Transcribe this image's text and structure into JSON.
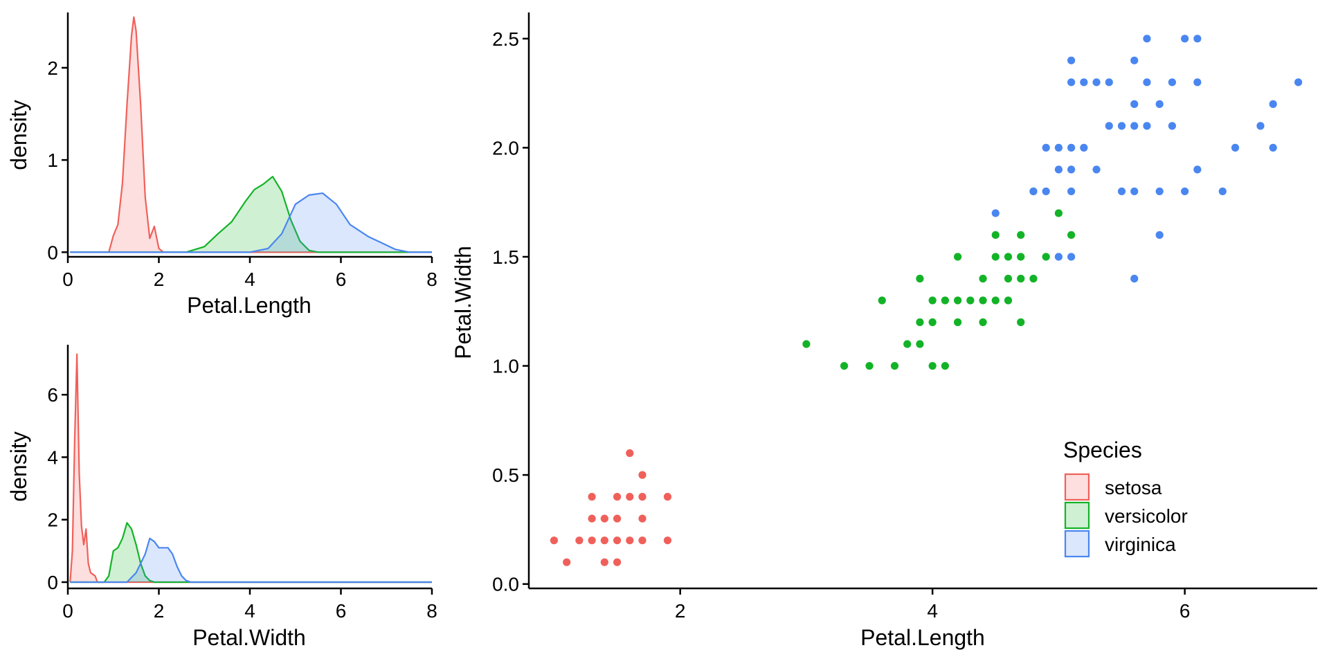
{
  "colors": {
    "setosa": "#F0605A",
    "versicolor": "#13B327",
    "virginica": "#4A86F0",
    "axis": "#000000"
  },
  "legend": {
    "title": "Species",
    "placement": "bottom-right",
    "items": [
      "setosa",
      "versicolor",
      "virginica"
    ]
  },
  "chart_data": [
    {
      "type": "area",
      "xlabel": "Petal.Length",
      "ylabel": "density",
      "xlim": [
        0,
        8
      ],
      "ylim": [
        -0.05,
        2.6
      ],
      "xticks": [
        "0",
        "2",
        "4",
        "6",
        "8"
      ],
      "yticks": [
        "0",
        "1",
        "2"
      ],
      "grid": false,
      "series": [
        {
          "name": "setosa",
          "points": [
            [
              0.05,
              0
            ],
            [
              0.9,
              0
            ],
            [
              1.0,
              0.18
            ],
            [
              1.1,
              0.3
            ],
            [
              1.2,
              0.75
            ],
            [
              1.3,
              1.6
            ],
            [
              1.4,
              2.35
            ],
            [
              1.45,
              2.55
            ],
            [
              1.5,
              2.4
            ],
            [
              1.6,
              1.6
            ],
            [
              1.7,
              0.6
            ],
            [
              1.8,
              0.15
            ],
            [
              1.9,
              0.28
            ],
            [
              2.0,
              0.04
            ],
            [
              2.1,
              0
            ],
            [
              8.0,
              0
            ]
          ]
        },
        {
          "name": "versicolor",
          "points": [
            [
              0.05,
              0
            ],
            [
              2.6,
              0
            ],
            [
              3.0,
              0.06
            ],
            [
              3.3,
              0.2
            ],
            [
              3.6,
              0.33
            ],
            [
              3.9,
              0.55
            ],
            [
              4.1,
              0.68
            ],
            [
              4.3,
              0.74
            ],
            [
              4.5,
              0.82
            ],
            [
              4.7,
              0.66
            ],
            [
              4.9,
              0.35
            ],
            [
              5.1,
              0.12
            ],
            [
              5.3,
              0.02
            ],
            [
              5.5,
              0
            ],
            [
              8.0,
              0
            ]
          ]
        },
        {
          "name": "virginica",
          "points": [
            [
              0.05,
              0
            ],
            [
              4.0,
              0
            ],
            [
              4.4,
              0.04
            ],
            [
              4.7,
              0.2
            ],
            [
              5.0,
              0.52
            ],
            [
              5.3,
              0.62
            ],
            [
              5.6,
              0.64
            ],
            [
              5.9,
              0.52
            ],
            [
              6.2,
              0.3
            ],
            [
              6.6,
              0.17
            ],
            [
              6.9,
              0.1
            ],
            [
              7.2,
              0.03
            ],
            [
              7.5,
              0
            ],
            [
              8.0,
              0
            ]
          ]
        }
      ]
    },
    {
      "type": "area",
      "xlabel": "Petal.Width",
      "ylabel": "density",
      "xlim": [
        0,
        8
      ],
      "ylim": [
        -0.2,
        7.6
      ],
      "xticks": [
        "0",
        "2",
        "4",
        "6",
        "8"
      ],
      "yticks": [
        "0",
        "2",
        "4",
        "6"
      ],
      "grid": false,
      "series": [
        {
          "name": "setosa",
          "points": [
            [
              0.05,
              0
            ],
            [
              0.1,
              1.0
            ],
            [
              0.15,
              4.5
            ],
            [
              0.2,
              7.3
            ],
            [
              0.25,
              3.5
            ],
            [
              0.3,
              1.8
            ],
            [
              0.35,
              1.2
            ],
            [
              0.4,
              1.7
            ],
            [
              0.45,
              0.6
            ],
            [
              0.5,
              0.3
            ],
            [
              0.6,
              0.2
            ],
            [
              0.65,
              0
            ],
            [
              8.0,
              0
            ]
          ]
        },
        {
          "name": "versicolor",
          "points": [
            [
              0.05,
              0
            ],
            [
              0.8,
              0
            ],
            [
              0.9,
              0.2
            ],
            [
              1.0,
              1.0
            ],
            [
              1.1,
              1.1
            ],
            [
              1.2,
              1.4
            ],
            [
              1.3,
              1.9
            ],
            [
              1.4,
              1.7
            ],
            [
              1.5,
              1.2
            ],
            [
              1.6,
              0.6
            ],
            [
              1.7,
              0.2
            ],
            [
              1.8,
              0.05
            ],
            [
              1.9,
              0
            ],
            [
              8.0,
              0
            ]
          ]
        },
        {
          "name": "virginica",
          "points": [
            [
              0.05,
              0
            ],
            [
              1.3,
              0
            ],
            [
              1.5,
              0.3
            ],
            [
              1.7,
              0.9
            ],
            [
              1.8,
              1.4
            ],
            [
              1.9,
              1.3
            ],
            [
              2.0,
              1.1
            ],
            [
              2.2,
              1.1
            ],
            [
              2.3,
              0.9
            ],
            [
              2.4,
              0.5
            ],
            [
              2.5,
              0.2
            ],
            [
              2.6,
              0.05
            ],
            [
              2.7,
              0
            ],
            [
              8.0,
              0
            ]
          ]
        }
      ]
    },
    {
      "type": "scatter",
      "xlabel": "Petal.Length",
      "ylabel": "Petal.Width",
      "xlim": [
        0.8,
        7.05
      ],
      "ylim": [
        -0.02,
        2.62
      ],
      "xticks": [
        "2",
        "4",
        "6"
      ],
      "yticks": [
        "0.0",
        "0.5",
        "1.0",
        "1.5",
        "2.0",
        "2.5"
      ],
      "grid": false,
      "series": [
        {
          "name": "setosa",
          "points": [
            [
              1.0,
              0.2
            ],
            [
              1.1,
              0.1
            ],
            [
              1.2,
              0.2
            ],
            [
              1.3,
              0.2
            ],
            [
              1.3,
              0.3
            ],
            [
              1.3,
              0.4
            ],
            [
              1.4,
              0.1
            ],
            [
              1.4,
              0.2
            ],
            [
              1.4,
              0.3
            ],
            [
              1.5,
              0.1
            ],
            [
              1.5,
              0.2
            ],
            [
              1.5,
              0.3
            ],
            [
              1.5,
              0.4
            ],
            [
              1.6,
              0.2
            ],
            [
              1.6,
              0.4
            ],
            [
              1.6,
              0.6
            ],
            [
              1.7,
              0.2
            ],
            [
              1.7,
              0.3
            ],
            [
              1.7,
              0.4
            ],
            [
              1.7,
              0.5
            ],
            [
              1.9,
              0.2
            ],
            [
              1.9,
              0.4
            ]
          ]
        },
        {
          "name": "versicolor",
          "points": [
            [
              3.0,
              1.1
            ],
            [
              3.3,
              1.0
            ],
            [
              3.5,
              1.0
            ],
            [
              3.6,
              1.3
            ],
            [
              3.7,
              1.0
            ],
            [
              3.8,
              1.1
            ],
            [
              3.9,
              1.1
            ],
            [
              3.9,
              1.2
            ],
            [
              3.9,
              1.4
            ],
            [
              4.0,
              1.0
            ],
            [
              4.0,
              1.2
            ],
            [
              4.0,
              1.3
            ],
            [
              4.1,
              1.0
            ],
            [
              4.1,
              1.3
            ],
            [
              4.2,
              1.2
            ],
            [
              4.2,
              1.3
            ],
            [
              4.2,
              1.5
            ],
            [
              4.3,
              1.3
            ],
            [
              4.4,
              1.2
            ],
            [
              4.4,
              1.3
            ],
            [
              4.4,
              1.4
            ],
            [
              4.5,
              1.3
            ],
            [
              4.5,
              1.5
            ],
            [
              4.5,
              1.6
            ],
            [
              4.6,
              1.3
            ],
            [
              4.6,
              1.4
            ],
            [
              4.6,
              1.5
            ],
            [
              4.7,
              1.2
            ],
            [
              4.7,
              1.4
            ],
            [
              4.7,
              1.5
            ],
            [
              4.7,
              1.6
            ],
            [
              4.8,
              1.4
            ],
            [
              4.8,
              1.8
            ],
            [
              4.9,
              1.5
            ],
            [
              5.0,
              1.7
            ],
            [
              5.1,
              1.6
            ]
          ]
        },
        {
          "name": "virginica",
          "points": [
            [
              4.5,
              1.7
            ],
            [
              4.8,
              1.8
            ],
            [
              4.9,
              1.8
            ],
            [
              4.9,
              2.0
            ],
            [
              5.0,
              1.5
            ],
            [
              5.0,
              1.9
            ],
            [
              5.0,
              2.0
            ],
            [
              5.1,
              1.5
            ],
            [
              5.1,
              1.8
            ],
            [
              5.1,
              1.9
            ],
            [
              5.1,
              2.0
            ],
            [
              5.1,
              2.3
            ],
            [
              5.1,
              2.4
            ],
            [
              5.2,
              2.0
            ],
            [
              5.2,
              2.3
            ],
            [
              5.3,
              1.9
            ],
            [
              5.3,
              2.3
            ],
            [
              5.4,
              2.1
            ],
            [
              5.4,
              2.3
            ],
            [
              5.5,
              1.8
            ],
            [
              5.5,
              2.1
            ],
            [
              5.6,
              1.4
            ],
            [
              5.6,
              1.8
            ],
            [
              5.6,
              2.1
            ],
            [
              5.6,
              2.2
            ],
            [
              5.6,
              2.4
            ],
            [
              5.7,
              2.1
            ],
            [
              5.7,
              2.3
            ],
            [
              5.7,
              2.5
            ],
            [
              5.8,
              1.6
            ],
            [
              5.8,
              1.8
            ],
            [
              5.8,
              2.2
            ],
            [
              5.9,
              2.1
            ],
            [
              5.9,
              2.3
            ],
            [
              6.0,
              1.8
            ],
            [
              6.0,
              2.5
            ],
            [
              6.1,
              1.9
            ],
            [
              6.1,
              2.3
            ],
            [
              6.1,
              2.5
            ],
            [
              6.3,
              1.8
            ],
            [
              6.4,
              2.0
            ],
            [
              6.6,
              2.1
            ],
            [
              6.7,
              2.0
            ],
            [
              6.7,
              2.2
            ],
            [
              6.9,
              2.3
            ]
          ]
        }
      ]
    }
  ]
}
